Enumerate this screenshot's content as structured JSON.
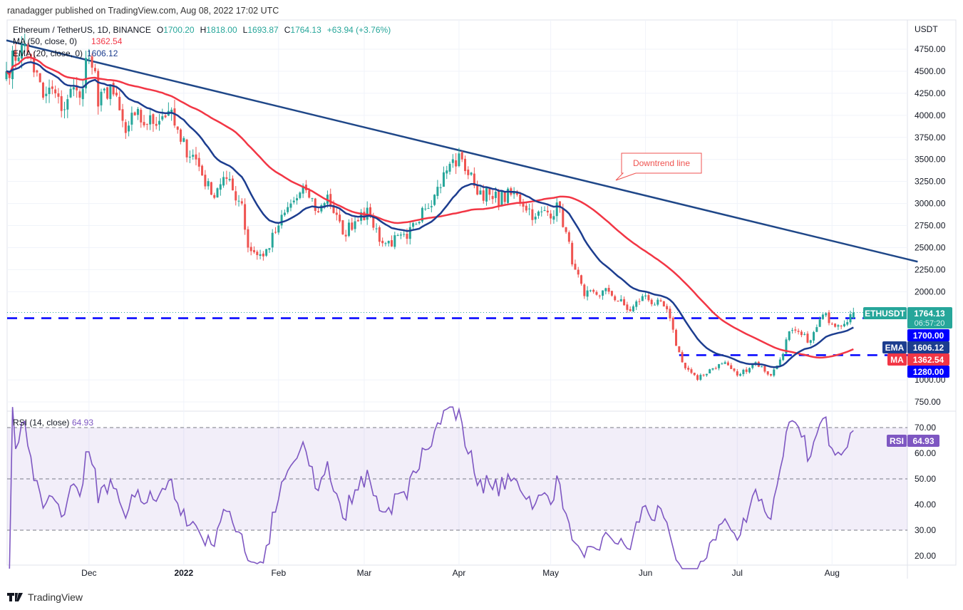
{
  "header": {
    "published": "ranadagger published on TradingView.com, Aug 08, 2022 17:02 UTC"
  },
  "legend": {
    "symbol": "Ethereum / TetherUS, 1D, BINANCE",
    "o_label": "O",
    "o": "1700.20",
    "h_label": "H",
    "h": "1818.00",
    "l_label": "L",
    "l": "1693.87",
    "c_label": "C",
    "c": "1764.13",
    "change": "+63.94 (+3.76%)",
    "ma_label": "MA (50, close, 0)",
    "ma_value": "1362.54",
    "ema_label": "EMA (20, close, 0)",
    "ema_value": "1606.12",
    "rsi_label": "RSI (14, close)",
    "rsi_value": "64.93"
  },
  "axis": {
    "currency": "USDT",
    "price_ticks": [
      "4750.00",
      "4500.00",
      "4250.00",
      "4000.00",
      "3750.00",
      "3500.00",
      "3250.00",
      "3000.00",
      "2750.00",
      "2500.00",
      "2250.00",
      "2000.00",
      "1000.00",
      "750.00"
    ],
    "rsi_ticks": [
      "70.00",
      "60.00",
      "50.00",
      "40.00",
      "30.00",
      "20.00"
    ],
    "time_ticks": [
      {
        "label": "Dec",
        "date": "2021-12-01",
        "bold": false
      },
      {
        "label": "2022",
        "date": "2022-01-01",
        "bold": true
      },
      {
        "label": "Feb",
        "date": "2022-02-01",
        "bold": false
      },
      {
        "label": "Mar",
        "date": "2022-03-01",
        "bold": false
      },
      {
        "label": "Apr",
        "date": "2022-04-01",
        "bold": false
      },
      {
        "label": "May",
        "date": "2022-05-01",
        "bold": false
      },
      {
        "label": "Jun",
        "date": "2022-06-01",
        "bold": false
      },
      {
        "label": "Jul",
        "date": "2022-07-01",
        "bold": false
      },
      {
        "label": "Aug",
        "date": "2022-08-01",
        "bold": false
      }
    ]
  },
  "badges": {
    "symbol": "ETHUSDT",
    "price": "1764.13",
    "countdown": "06:57:20",
    "support1": "1700.00",
    "ema_tag": "EMA",
    "ema": "1606.12",
    "ma_tag": "MA",
    "ma": "1362.54",
    "support2": "1280.00",
    "rsi_tag": "RSI",
    "rsi": "64.93"
  },
  "annotation": {
    "text": "Downtrend line"
  },
  "footer": {
    "brand": "TradingView"
  },
  "colors": {
    "up": "#26a69a",
    "down": "#ef5350",
    "ema": "#1c3d8f",
    "ma": "#f23645",
    "rsi": "#7e57c2",
    "support": "#0000ff",
    "trend": "#1f4788"
  },
  "chart_data": {
    "type": "candlestick",
    "symbol": "ETHUSDT",
    "interval": "1D",
    "ylim": [
      700,
      4900
    ],
    "rsi_ylim": [
      15,
      78
    ],
    "approx_closes": [
      [
        "2021-11-04",
        4500
      ],
      [
        "2021-11-09",
        4800
      ],
      [
        "2021-11-12",
        4650
      ],
      [
        "2021-11-16",
        4200
      ],
      [
        "2021-11-19",
        4300
      ],
      [
        "2021-11-22",
        4050
      ],
      [
        "2021-11-25",
        4300
      ],
      [
        "2021-11-28",
        4200
      ],
      [
        "2021-11-30",
        4650
      ],
      [
        "2021-12-03",
        4500
      ],
      [
        "2021-12-04",
        4100
      ],
      [
        "2021-12-08",
        4350
      ],
      [
        "2021-12-13",
        3800
      ],
      [
        "2021-12-16",
        4000
      ],
      [
        "2021-12-20",
        3900
      ],
      [
        "2021-12-27",
        4050
      ],
      [
        "2021-12-31",
        3700
      ],
      [
        "2022-01-05",
        3500
      ],
      [
        "2022-01-10",
        3100
      ],
      [
        "2022-01-14",
        3300
      ],
      [
        "2022-01-20",
        3000
      ],
      [
        "2022-01-22",
        2500
      ],
      [
        "2022-01-27",
        2400
      ],
      [
        "2022-02-01",
        2750
      ],
      [
        "2022-02-05",
        3000
      ],
      [
        "2022-02-10",
        3150
      ],
      [
        "2022-02-14",
        2900
      ],
      [
        "2022-02-17",
        3100
      ],
      [
        "2022-02-22",
        2650
      ],
      [
        "2022-02-28",
        2900
      ],
      [
        "2022-03-03",
        2850
      ],
      [
        "2022-03-07",
        2550
      ],
      [
        "2022-03-15",
        2600
      ],
      [
        "2022-03-20",
        2950
      ],
      [
        "2022-03-24",
        3100
      ],
      [
        "2022-03-29",
        3450
      ],
      [
        "2022-04-02",
        3500
      ],
      [
        "2022-04-06",
        3200
      ],
      [
        "2022-04-12",
        3050
      ],
      [
        "2022-04-20",
        3100
      ],
      [
        "2022-04-26",
        2850
      ],
      [
        "2022-05-04",
        2950
      ],
      [
        "2022-05-09",
        2250
      ],
      [
        "2022-05-12",
        1950
      ],
      [
        "2022-05-20",
        2000
      ],
      [
        "2022-05-27",
        1780
      ],
      [
        "2022-05-31",
        1950
      ],
      [
        "2022-06-08",
        1800
      ],
      [
        "2022-06-13",
        1200
      ],
      [
        "2022-06-18",
        1000
      ],
      [
        "2022-06-22",
        1120
      ],
      [
        "2022-06-27",
        1200
      ],
      [
        "2022-07-01",
        1050
      ],
      [
        "2022-07-07",
        1200
      ],
      [
        "2022-07-12",
        1050
      ],
      [
        "2022-07-15",
        1230
      ],
      [
        "2022-07-18",
        1550
      ],
      [
        "2022-07-25",
        1450
      ],
      [
        "2022-07-29",
        1740
      ],
      [
        "2022-08-03",
        1620
      ],
      [
        "2022-08-08",
        1764.13
      ]
    ],
    "last": {
      "open": 1700.2,
      "high": 1818.0,
      "low": 1693.87,
      "close": 1764.13
    },
    "indicators": {
      "ma_period": 50,
      "ema_period": 20,
      "rsi_period": 14,
      "rsi_levels": [
        30,
        50,
        70
      ]
    },
    "levels": [
      {
        "price": 1700,
        "style": "dashed"
      },
      {
        "price": 1280,
        "style": "dashed",
        "from": "2022-06-12"
      }
    ],
    "trendline": {
      "from": [
        "2021-11-04",
        4850
      ],
      "to": [
        "2022-08-29",
        2340
      ]
    }
  }
}
